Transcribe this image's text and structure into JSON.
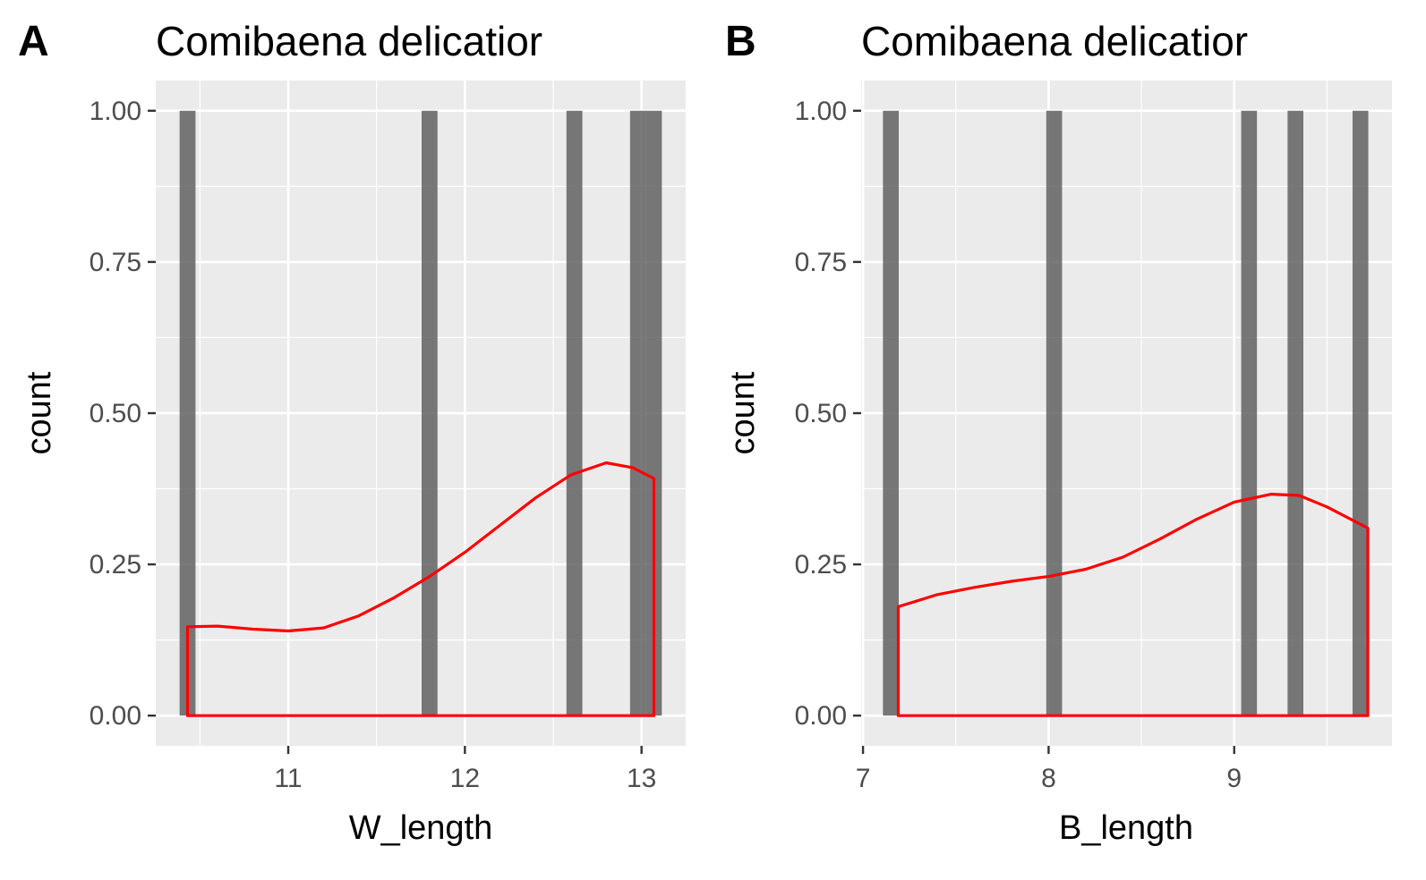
{
  "colors": {
    "panel_background": "#ebebeb",
    "grid_line": "#ffffff",
    "bar_fill": "#595959",
    "density_line": "#ff0000",
    "tick_text": "#4d4d4d",
    "tick_mark": "#333333"
  },
  "chart_data": [
    {
      "type": "bar",
      "panel_tag": "A",
      "title": "Comibaena delicatior",
      "xlabel": "W_length",
      "ylabel": "count",
      "xlim": [
        10.25,
        13.25
      ],
      "ylim": [
        -0.05,
        1.05
      ],
      "x_ticks": [
        11,
        12,
        13
      ],
      "x_tick_labels": [
        "11",
        "12",
        "13"
      ],
      "x_minor_ticks": [
        10.5,
        11.5,
        12.5
      ],
      "y_ticks": [
        0,
        0.25,
        0.5,
        0.75,
        1
      ],
      "y_tick_labels": [
        "0.00",
        "0.25",
        "0.50",
        "0.75",
        "1.00"
      ],
      "y_minor_ticks": [
        0.125,
        0.375,
        0.625,
        0.875
      ],
      "bar_width": 0.09,
      "bars": [
        {
          "x": 10.43,
          "count": 1
        },
        {
          "x": 11.8,
          "count": 1
        },
        {
          "x": 12.62,
          "count": 1
        },
        {
          "x": 12.98,
          "count": 1
        },
        {
          "x": 13.07,
          "count": 1
        }
      ],
      "density": {
        "x": [
          10.43,
          10.6,
          10.8,
          11.0,
          11.2,
          11.4,
          11.6,
          11.8,
          12.0,
          12.2,
          12.4,
          12.6,
          12.8,
          12.95,
          13.07
        ],
        "y": [
          0.147,
          0.148,
          0.143,
          0.14,
          0.145,
          0.165,
          0.195,
          0.23,
          0.27,
          0.315,
          0.36,
          0.398,
          0.418,
          0.41,
          0.392
        ]
      },
      "grid": true
    },
    {
      "type": "bar",
      "panel_tag": "B",
      "title": "Comibaena delicatior",
      "xlabel": "B_length",
      "ylabel": "count",
      "xlim": [
        6.99,
        9.85
      ],
      "ylim": [
        -0.05,
        1.05
      ],
      "x_ticks": [
        7,
        8,
        9
      ],
      "x_tick_labels": [
        "7",
        "8",
        "9"
      ],
      "x_minor_ticks": [
        7.5,
        8.5,
        9.5
      ],
      "y_ticks": [
        0,
        0.25,
        0.5,
        0.75,
        1
      ],
      "y_tick_labels": [
        "0.00",
        "0.25",
        "0.50",
        "0.75",
        "1.00"
      ],
      "y_minor_ticks": [
        0.125,
        0.375,
        0.625,
        0.875
      ],
      "bar_width": 0.085,
      "bars": [
        {
          "x": 7.15,
          "count": 1
        },
        {
          "x": 8.03,
          "count": 1
        },
        {
          "x": 9.08,
          "count": 1
        },
        {
          "x": 9.33,
          "count": 1
        },
        {
          "x": 9.68,
          "count": 1
        }
      ],
      "density": {
        "x": [
          7.19,
          7.4,
          7.6,
          7.8,
          8.0,
          8.2,
          8.4,
          8.6,
          8.8,
          9.0,
          9.2,
          9.35,
          9.5,
          9.72
        ],
        "y": [
          0.18,
          0.2,
          0.212,
          0.222,
          0.23,
          0.242,
          0.262,
          0.292,
          0.325,
          0.353,
          0.366,
          0.364,
          0.345,
          0.31
        ]
      },
      "grid": true
    }
  ]
}
